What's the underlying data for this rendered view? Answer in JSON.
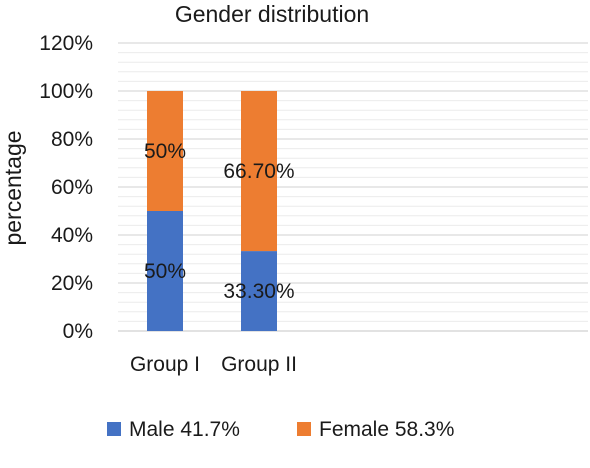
{
  "chart_data": {
    "type": "bar",
    "stacked": true,
    "title": "Gender distribution",
    "xlabel": "",
    "ylabel": "percentage",
    "categories": [
      "Group I",
      "Group II"
    ],
    "ylim": [
      0,
      120
    ],
    "yticks": [
      "0%",
      "20%",
      "40%",
      "60%",
      "80%",
      "100%",
      "120%"
    ],
    "grid": true,
    "legend_position": "bottom",
    "series": [
      {
        "name": "Male 41.7%",
        "color": "#4472C4",
        "values": [
          50,
          33.3
        ],
        "labels": [
          "50%",
          "33.30%"
        ]
      },
      {
        "name": "Female 58.3%",
        "color": "#ED7D31",
        "values": [
          50,
          66.7
        ],
        "labels": [
          "50%",
          "66.70%"
        ]
      }
    ]
  }
}
